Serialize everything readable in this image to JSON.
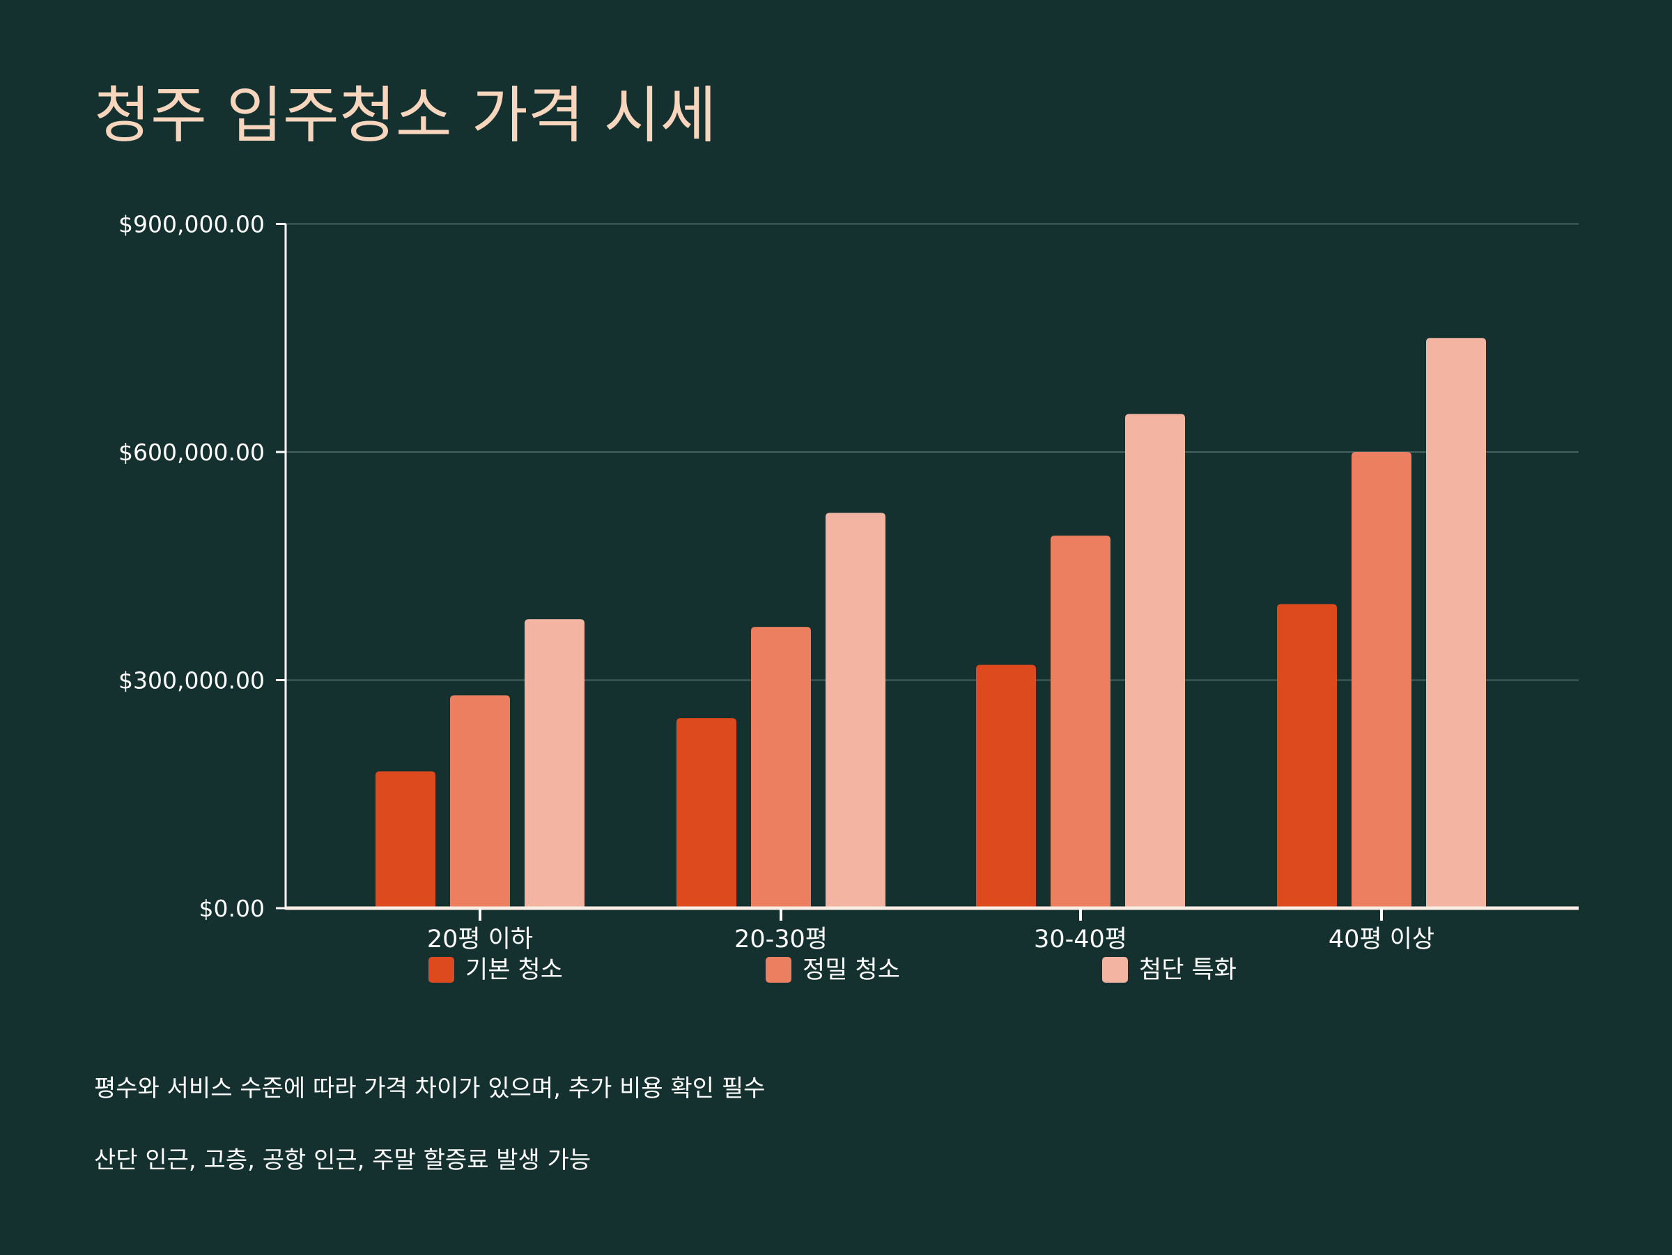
{
  "title": "청주 입주청소 가격 시세",
  "chart_data": {
    "type": "bar",
    "title": "청주 입주청소 가격 시세",
    "categories": [
      "20평 이하",
      "20-30평",
      "30-40평",
      "40평 이상"
    ],
    "series": [
      {
        "name": "기본 청소",
        "color": "#dc4a1e",
        "values": [
          180000,
          250000,
          320000,
          400000
        ]
      },
      {
        "name": "정밀 청소",
        "color": "#ec7f5f",
        "values": [
          280000,
          370000,
          490000,
          600000
        ]
      },
      {
        "name": "첨단 특화",
        "color": "#f3b5a2",
        "values": [
          380000,
          520000,
          650000,
          750000
        ]
      }
    ],
    "ylim": [
      0,
      900000
    ],
    "yticks": [
      0,
      300000,
      600000,
      900000
    ],
    "ytick_labels": [
      "$0.00",
      "$300,000.00",
      "$600,000.00",
      "$900,000.00"
    ],
    "grid": true,
    "legend": "bottom",
    "xlabel": "",
    "ylabel": ""
  },
  "notes": [
    "평수와 서비스 수준에 따라 가격 차이가 있으며, 추가 비용 확인 필수",
    "산단 인근, 고층, 공항 인근, 주말 할증료 발생 가능"
  ]
}
